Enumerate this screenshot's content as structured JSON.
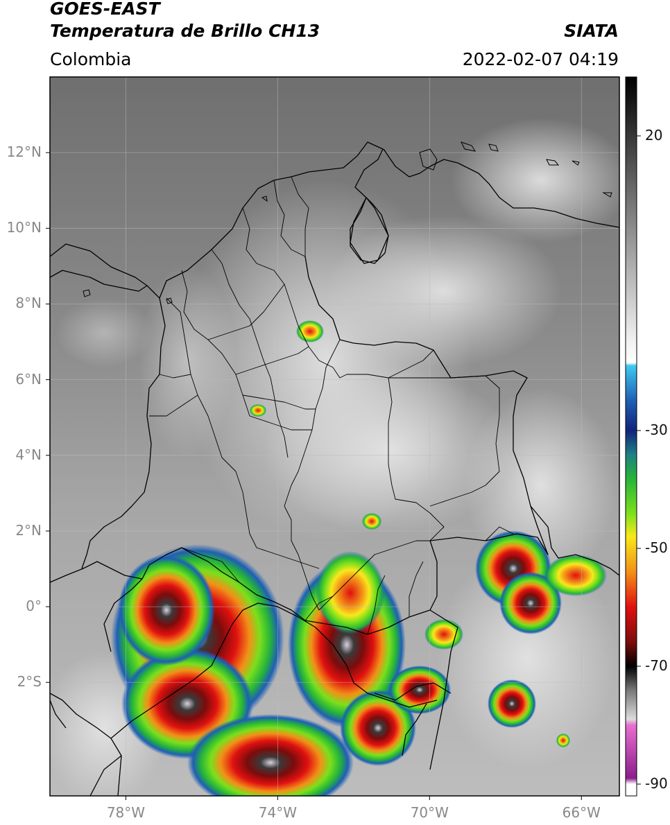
{
  "header": {
    "satellite": "GOES-EAST",
    "product": "Temperatura de Brillo CH13",
    "region": "Colombia",
    "agency": "SIATA",
    "datetime": "2022-02-07 04:19"
  },
  "map": {
    "lat_ticks": [
      "12°N",
      "10°N",
      "8°N",
      "6°N",
      "4°N",
      "2°N",
      "0°",
      "2°S"
    ],
    "lon_ticks": [
      "78°W",
      "74°W",
      "70°W",
      "66°W"
    ],
    "lat_values": [
      12,
      10,
      8,
      6,
      4,
      2,
      0,
      -2
    ],
    "lon_values": [
      -78,
      -74,
      -70,
      -66
    ],
    "lon_range": [
      -80,
      -65
    ],
    "lat_range": [
      -5,
      14
    ],
    "gridlines": true
  },
  "colorbar": {
    "ticks": [
      "20",
      "-30",
      "-50",
      "-70",
      "-90"
    ],
    "tick_values": [
      20,
      -30,
      -50,
      -70,
      -90
    ],
    "range": [
      -92,
      30
    ],
    "stops": [
      {
        "v": 30,
        "c": "#000000"
      },
      {
        "v": 10,
        "c": "#6e6e6e"
      },
      {
        "v": -15,
        "c": "#f2f2f2"
      },
      {
        "v": -18.5,
        "c": "#ffffff"
      },
      {
        "v": -19,
        "c": "#3fc8f0"
      },
      {
        "v": -25,
        "c": "#1e5fb4"
      },
      {
        "v": -30,
        "c": "#12237a"
      },
      {
        "v": -34,
        "c": "#1d7f85"
      },
      {
        "v": -38,
        "c": "#25b33a"
      },
      {
        "v": -44,
        "c": "#7ae01c"
      },
      {
        "v": -48,
        "c": "#f8e81c"
      },
      {
        "v": -54,
        "c": "#f39018"
      },
      {
        "v": -60,
        "c": "#e01010"
      },
      {
        "v": -66,
        "c": "#7a0c0c"
      },
      {
        "v": -70,
        "c": "#000000"
      },
      {
        "v": -74,
        "c": "#777777"
      },
      {
        "v": -79,
        "c": "#dcdcdc"
      },
      {
        "v": -80,
        "c": "#e86fd0"
      },
      {
        "v": -89,
        "c": "#8c1d8c"
      },
      {
        "v": -90,
        "c": "#ffffff"
      }
    ]
  }
}
